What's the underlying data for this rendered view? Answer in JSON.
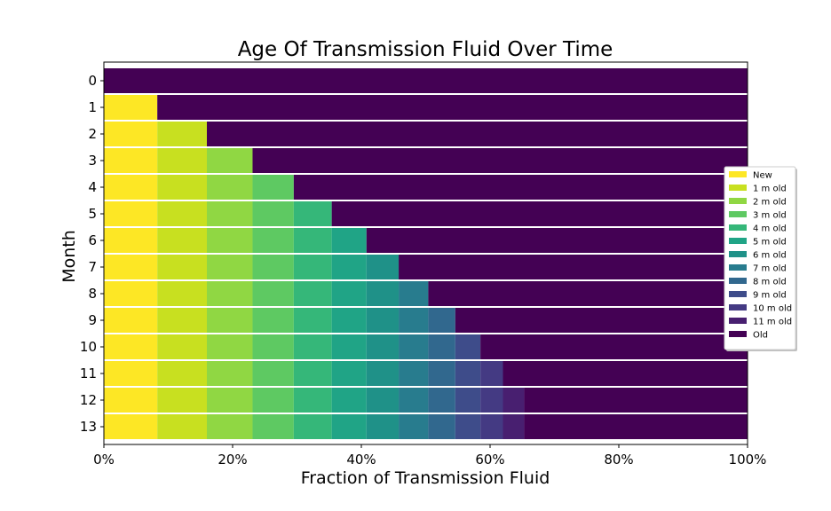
{
  "chart_data": {
    "type": "bar",
    "orientation": "horizontal",
    "stacked": true,
    "title": "Age Of Transmission Fluid Over Time",
    "xlabel": "Fraction of Transmission Fluid",
    "ylabel": "Month",
    "xlim": [
      0,
      1
    ],
    "x_ticks": [
      "0%",
      "20%",
      "40%",
      "60%",
      "80%",
      "100%"
    ],
    "categories": [
      "0",
      "1",
      "2",
      "3",
      "4",
      "5",
      "6",
      "7",
      "8",
      "9",
      "10",
      "11",
      "12",
      "13"
    ],
    "legend_position": "center-right",
    "grid": false,
    "series": [
      {
        "name": "New",
        "color": "#fde725",
        "values": [
          0,
          0.083,
          0.083,
          0.083,
          0.083,
          0.083,
          0.083,
          0.083,
          0.083,
          0.083,
          0.083,
          0.083,
          0.083,
          0.083
        ]
      },
      {
        "name": "1 m old",
        "color": "#c8e020",
        "values": [
          0,
          0,
          0.077,
          0.077,
          0.077,
          0.077,
          0.077,
          0.077,
          0.077,
          0.077,
          0.077,
          0.077,
          0.077,
          0.077
        ]
      },
      {
        "name": "2 m old",
        "color": "#90d743",
        "values": [
          0,
          0,
          0,
          0.071,
          0.071,
          0.071,
          0.071,
          0.071,
          0.071,
          0.071,
          0.071,
          0.071,
          0.071,
          0.071
        ]
      },
      {
        "name": "3 m old",
        "color": "#5ec962",
        "values": [
          0,
          0,
          0,
          0,
          0.064,
          0.064,
          0.064,
          0.064,
          0.064,
          0.064,
          0.064,
          0.064,
          0.064,
          0.064
        ]
      },
      {
        "name": "4 m old",
        "color": "#35b779",
        "values": [
          0,
          0,
          0,
          0,
          0,
          0.059,
          0.059,
          0.059,
          0.059,
          0.059,
          0.059,
          0.059,
          0.059,
          0.059
        ]
      },
      {
        "name": "5 m old",
        "color": "#20a486",
        "values": [
          0,
          0,
          0,
          0,
          0,
          0,
          0.054,
          0.054,
          0.054,
          0.054,
          0.054,
          0.054,
          0.054,
          0.054
        ]
      },
      {
        "name": "6 m old",
        "color": "#1f9188",
        "values": [
          0,
          0,
          0,
          0,
          0,
          0,
          0,
          0.05,
          0.05,
          0.05,
          0.05,
          0.05,
          0.05,
          0.05
        ]
      },
      {
        "name": "7 m old",
        "color": "#287c8e",
        "values": [
          0,
          0,
          0,
          0,
          0,
          0,
          0,
          0,
          0.046,
          0.046,
          0.046,
          0.046,
          0.046,
          0.046
        ]
      },
      {
        "name": "8 m old",
        "color": "#31688e",
        "values": [
          0,
          0,
          0,
          0,
          0,
          0,
          0,
          0,
          0,
          0.042,
          0.042,
          0.042,
          0.042,
          0.042
        ]
      },
      {
        "name": "9 m old",
        "color": "#3e4c8a",
        "values": [
          0,
          0,
          0,
          0,
          0,
          0,
          0,
          0,
          0,
          0,
          0.039,
          0.039,
          0.039,
          0.039
        ]
      },
      {
        "name": "10 m old",
        "color": "#443a83",
        "values": [
          0,
          0,
          0,
          0,
          0,
          0,
          0,
          0,
          0,
          0,
          0,
          0.035,
          0.035,
          0.035
        ]
      },
      {
        "name": "11 m old",
        "color": "#481f70",
        "values": [
          0,
          0,
          0,
          0,
          0,
          0,
          0,
          0,
          0,
          0,
          0,
          0,
          0.033,
          0.033
        ]
      },
      {
        "name": "Old",
        "color": "#440154",
        "values": [
          1,
          0.917,
          0.84,
          0.769,
          0.705,
          0.646,
          0.592,
          0.542,
          0.496,
          0.454,
          0.415,
          0.38,
          0.347,
          0.347
        ]
      }
    ]
  }
}
